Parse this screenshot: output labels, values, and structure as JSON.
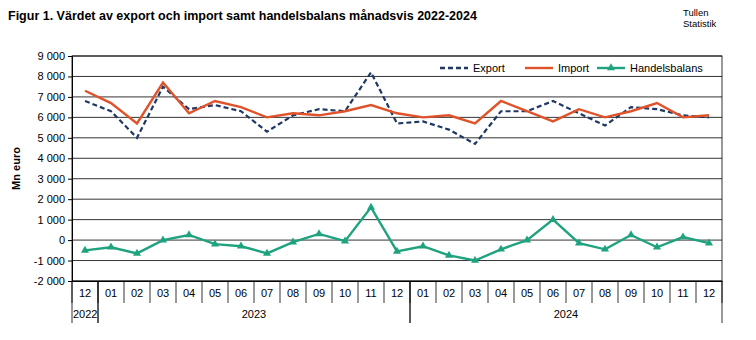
{
  "chart_data": {
    "type": "line",
    "title": "Figur 1. Värdet av export och import samt handelsbalans månadsvis 2022-2024",
    "source": [
      "Tullen",
      "Statistik"
    ],
    "y_label": "Mn euro",
    "categories": [
      "12",
      "01",
      "02",
      "03",
      "04",
      "05",
      "06",
      "07",
      "08",
      "09",
      "10",
      "11",
      "12",
      "01",
      "02",
      "03",
      "04",
      "05",
      "06",
      "07",
      "08",
      "09",
      "10",
      "11",
      "12"
    ],
    "year_groups": [
      {
        "label": "2022",
        "start": 0,
        "end": 0
      },
      {
        "label": "2023",
        "start": 1,
        "end": 12
      },
      {
        "label": "2024",
        "start": 13,
        "end": 24
      }
    ],
    "series": [
      {
        "name": "Export",
        "color": "#1f3864",
        "line_style": "dashed",
        "marker": "none",
        "values": [
          6800,
          6300,
          5000,
          7500,
          6400,
          6600,
          6300,
          5300,
          6100,
          6400,
          6300,
          8200,
          5700,
          5800,
          5400,
          4700,
          6300,
          6300,
          6800,
          6200,
          5600,
          6500,
          6400,
          6100,
          6000
        ]
      },
      {
        "name": "Import",
        "color": "#e0522a",
        "line_style": "solid",
        "marker": "none",
        "values": [
          7300,
          6700,
          5700,
          7700,
          6200,
          6800,
          6500,
          6000,
          6200,
          6100,
          6300,
          6600,
          6200,
          6000,
          6100,
          5700,
          6800,
          6300,
          5800,
          6400,
          6000,
          6300,
          6700,
          6000,
          6100
        ]
      },
      {
        "name": "Handelsbalans",
        "color": "#1fa37f",
        "line_style": "solid",
        "marker": "triangle",
        "values": [
          -500,
          -350,
          -650,
          0,
          250,
          -200,
          -300,
          -650,
          -100,
          300,
          -50,
          1600,
          -550,
          -300,
          -750,
          -1000,
          -450,
          0,
          1000,
          -150,
          -450,
          250,
          -350,
          150,
          -150
        ]
      }
    ],
    "ylim": [
      -2000,
      9000
    ],
    "yticks": [
      {
        "value": -2000,
        "label": "-2 000"
      },
      {
        "value": -1000,
        "label": "-1 000"
      },
      0,
      {
        "value": 1000,
        "label": "1 000"
      },
      {
        "value": 2000,
        "label": "2 000"
      },
      {
        "value": 3000,
        "label": "3 000"
      },
      {
        "value": 4000,
        "label": "4 000"
      },
      {
        "value": 5000,
        "label": "5 000"
      },
      {
        "value": 6000,
        "label": "6 000"
      },
      {
        "value": 7000,
        "label": "7 000"
      },
      {
        "value": 8000,
        "label": "8 000"
      },
      {
        "value": 9000,
        "label": "9 000"
      }
    ],
    "grid": true,
    "legend": "top-right"
  }
}
